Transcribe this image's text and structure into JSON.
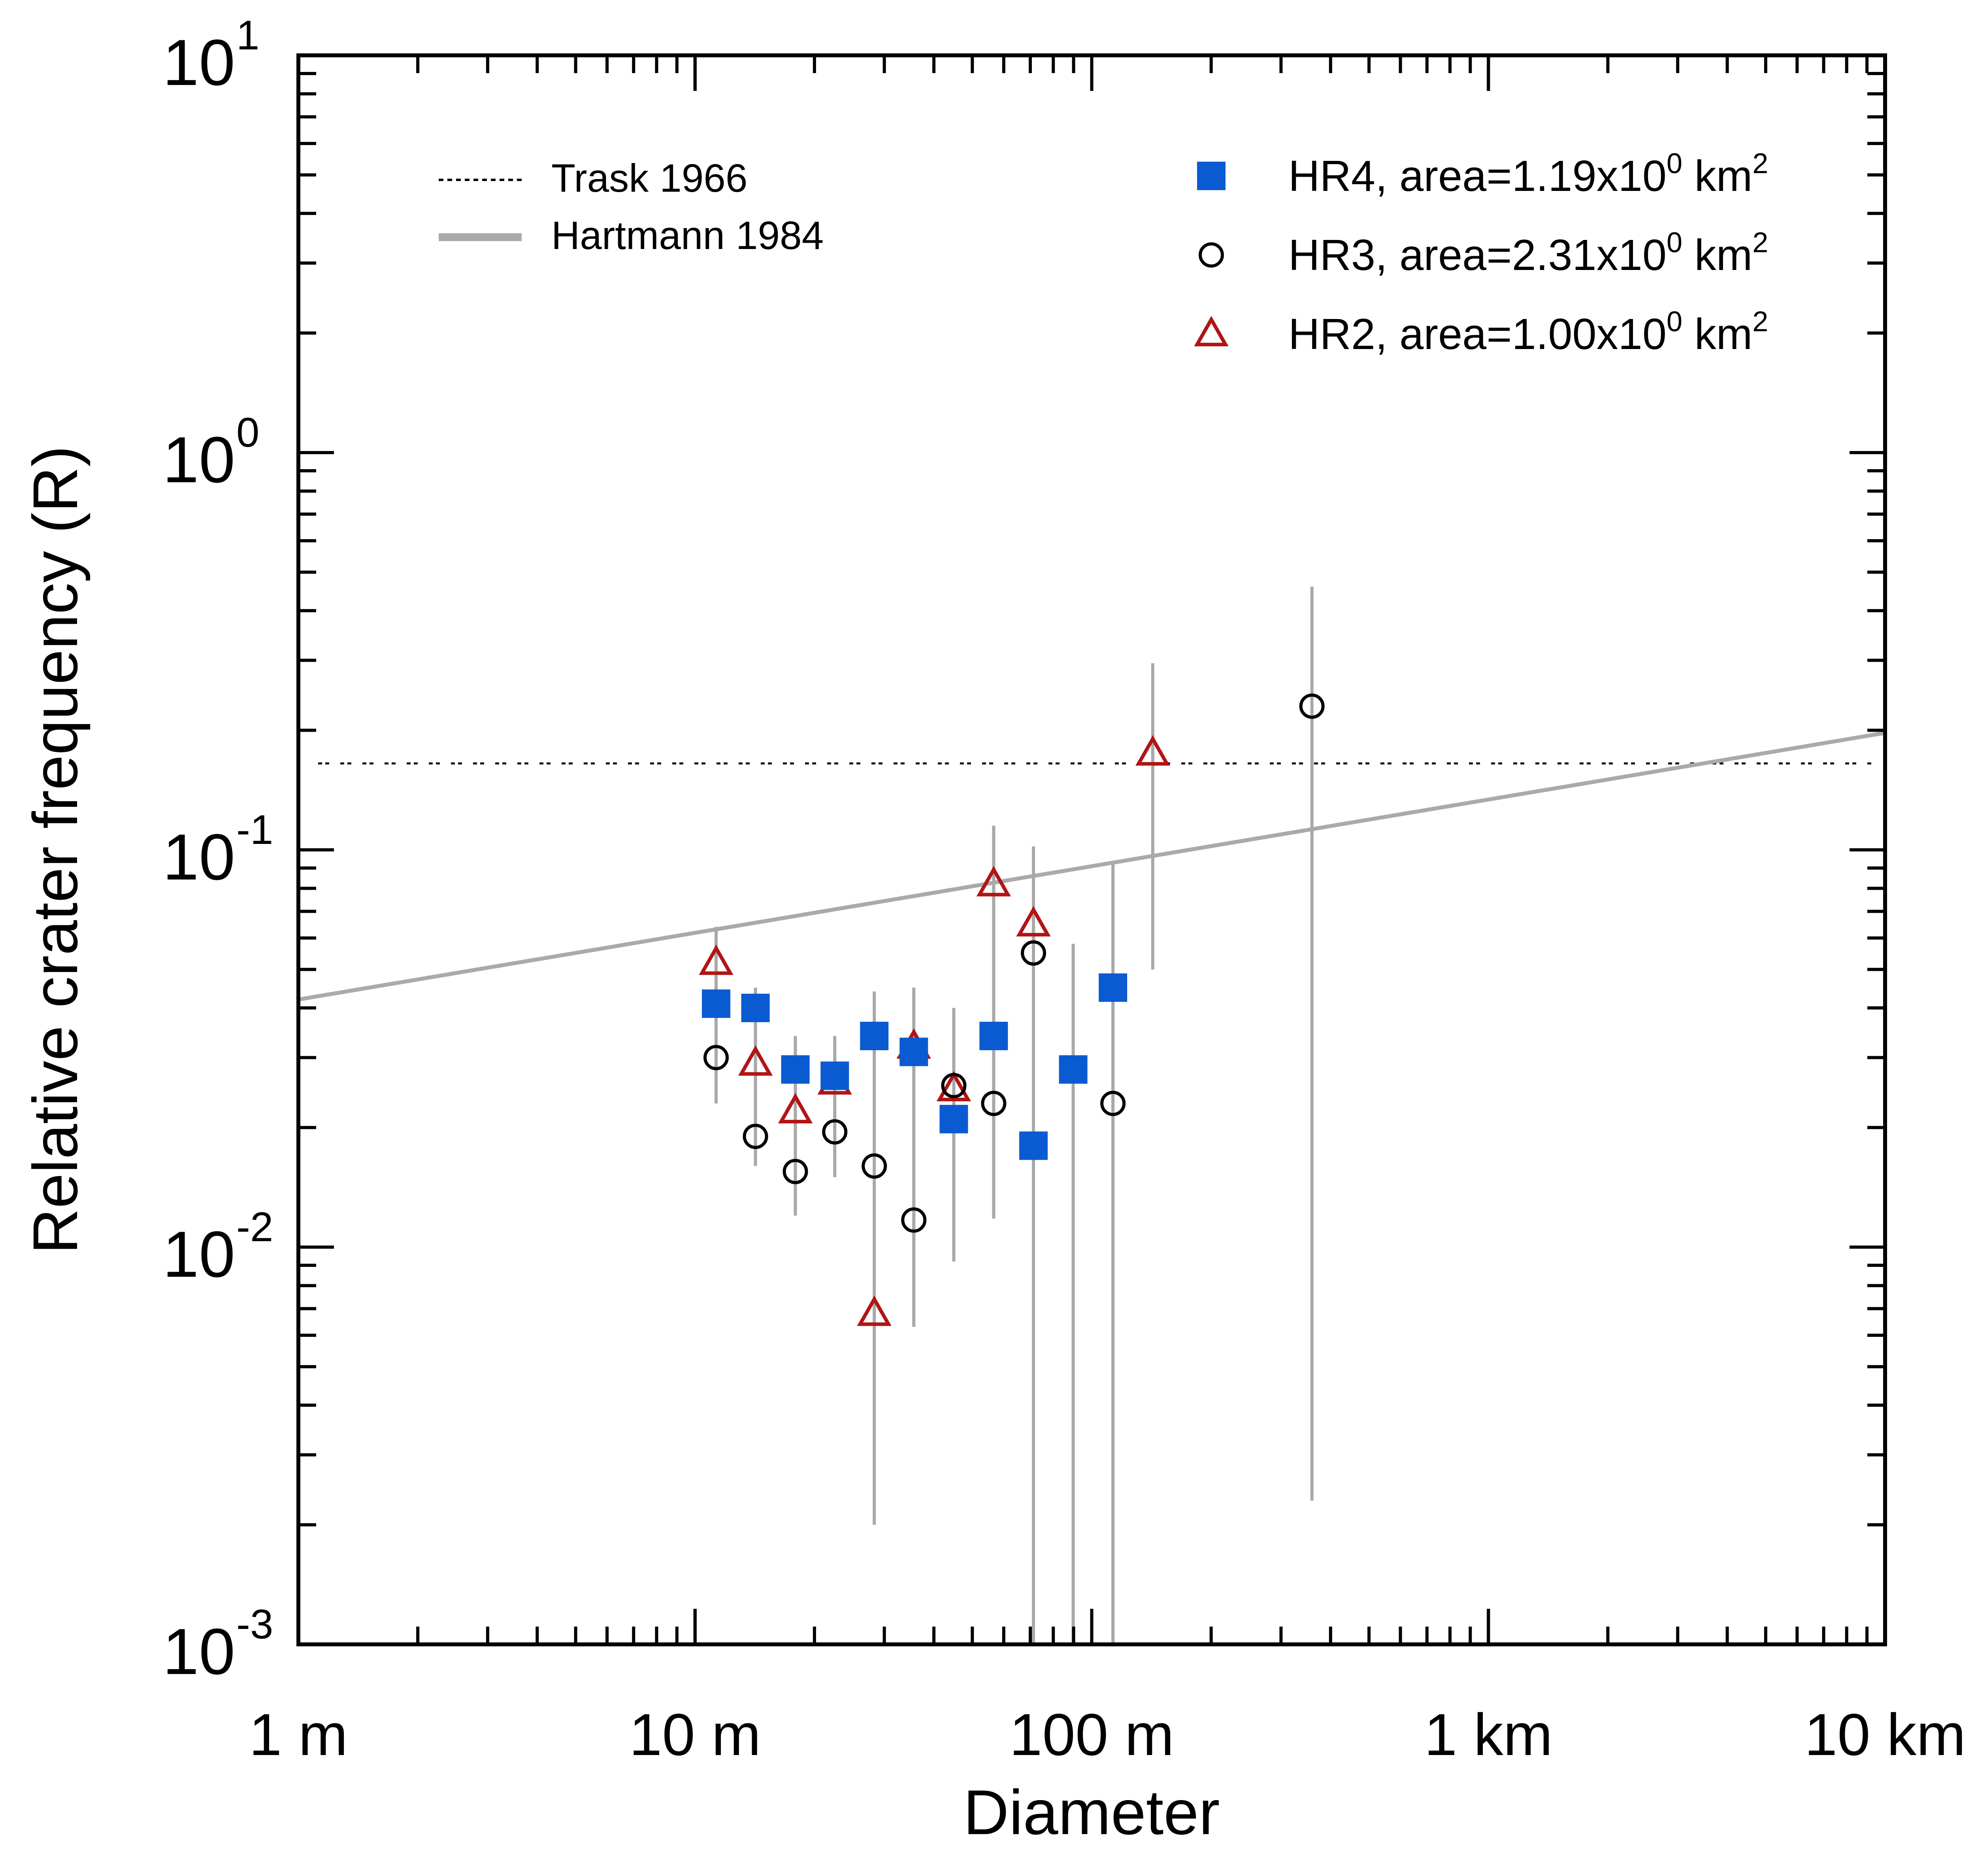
{
  "chart_data": {
    "type": "scatter",
    "xlabel": "Diameter",
    "ylabel": "Relative crater frequency (R)",
    "xscale": "log",
    "yscale": "log",
    "xlim_m": [
      1,
      10000
    ],
    "ylim": [
      0.001,
      10
    ],
    "x_ticks": [
      {
        "value": 1,
        "label": "1 m"
      },
      {
        "value": 10,
        "label": "10 m"
      },
      {
        "value": 100,
        "label": "100 m"
      },
      {
        "value": 1000,
        "label": "1 km"
      },
      {
        "value": 10000,
        "label": "10 km"
      }
    ],
    "y_ticks": [
      {
        "value": 0.001,
        "base": "10",
        "exp": "-3"
      },
      {
        "value": 0.01,
        "base": "10",
        "exp": "-2"
      },
      {
        "value": 0.1,
        "base": "10",
        "exp": "-1"
      },
      {
        "value": 1,
        "base": "10",
        "exp": "0"
      },
      {
        "value": 10,
        "base": "10",
        "exp": "1"
      }
    ],
    "reference_lines": [
      {
        "name": "Trask 1966",
        "style": "dotted",
        "color": "#000000",
        "y_const": 0.165
      },
      {
        "name": "Hartmann 1984",
        "style": "solid",
        "color": "#aaaaaa",
        "x": [
          1,
          10000
        ],
        "y": [
          0.042,
          0.197
        ]
      }
    ],
    "series": [
      {
        "name": "HR4",
        "legend_prefix": "HR4, area=1.19x10",
        "legend_exp": "0",
        "legend_unit": " km",
        "legend_unit_exp": "2",
        "marker": "square",
        "color": "#0a5bd1",
        "points": [
          {
            "x": 11.3,
            "y": 0.041
          },
          {
            "x": 14.2,
            "y": 0.04
          },
          {
            "x": 17.9,
            "y": 0.028
          },
          {
            "x": 22.5,
            "y": 0.027
          },
          {
            "x": 28.3,
            "y": 0.034
          },
          {
            "x": 35.6,
            "y": 0.031
          },
          {
            "x": 44.9,
            "y": 0.021
          },
          {
            "x": 56.6,
            "y": 0.034
          },
          {
            "x": 71.3,
            "y": 0.018
          },
          {
            "x": 89.8,
            "y": 0.028
          },
          {
            "x": 113.1,
            "y": 0.045
          }
        ]
      },
      {
        "name": "HR3",
        "legend_prefix": "HR3, area=2.31x10",
        "legend_exp": "0",
        "legend_unit": " km",
        "legend_unit_exp": "2",
        "marker": "circle",
        "color": "#000000",
        "points": [
          {
            "x": 11.3,
            "y": 0.03
          },
          {
            "x": 14.2,
            "y": 0.019
          },
          {
            "x": 17.9,
            "y": 0.0155
          },
          {
            "x": 22.5,
            "y": 0.0195
          },
          {
            "x": 28.3,
            "y": 0.016
          },
          {
            "x": 35.6,
            "y": 0.0117
          },
          {
            "x": 44.9,
            "y": 0.0255
          },
          {
            "x": 56.6,
            "y": 0.023
          },
          {
            "x": 71.3,
            "y": 0.055
          },
          {
            "x": 113.1,
            "y": 0.023
          },
          {
            "x": 359,
            "y": 0.23
          }
        ]
      },
      {
        "name": "HR2",
        "legend_prefix": "HR2, area=1.00x10",
        "legend_exp": "0",
        "legend_unit": " km",
        "legend_unit_exp": "2",
        "marker": "triangle",
        "color": "#b01515",
        "points": [
          {
            "x": 11.3,
            "y": 0.052
          },
          {
            "x": 14.2,
            "y": 0.029
          },
          {
            "x": 17.9,
            "y": 0.022
          },
          {
            "x": 22.5,
            "y": 0.026
          },
          {
            "x": 28.3,
            "y": 0.0068
          },
          {
            "x": 35.6,
            "y": 0.032
          },
          {
            "x": 44.9,
            "y": 0.025
          },
          {
            "x": 56.6,
            "y": 0.082
          },
          {
            "x": 71.3,
            "y": 0.065
          },
          {
            "x": 142.5,
            "y": 0.175
          }
        ]
      }
    ],
    "error_bars": [
      {
        "x": 11.3,
        "lo": 0.023,
        "hi": 0.064
      },
      {
        "x": 14.2,
        "lo": 0.016,
        "hi": 0.045
      },
      {
        "x": 17.9,
        "lo": 0.012,
        "hi": 0.034
      },
      {
        "x": 22.5,
        "lo": 0.015,
        "hi": 0.034
      },
      {
        "x": 28.3,
        "lo": 0.002,
        "hi": 0.044
      },
      {
        "x": 35.6,
        "lo": 0.0063,
        "hi": 0.045
      },
      {
        "x": 44.9,
        "lo": 0.0092,
        "hi": 0.04
      },
      {
        "x": 56.6,
        "lo": 0.0118,
        "hi": 0.115
      },
      {
        "x": 71.3,
        "lo": 0.001,
        "hi": 0.102
      },
      {
        "x": 89.8,
        "lo": 0.001,
        "hi": 0.058
      },
      {
        "x": 113.1,
        "lo": 0.001,
        "hi": 0.092
      },
      {
        "x": 142.5,
        "lo": 0.05,
        "hi": 0.295
      },
      {
        "x": 359,
        "lo": 0.0023,
        "hi": 0.46
      }
    ]
  }
}
